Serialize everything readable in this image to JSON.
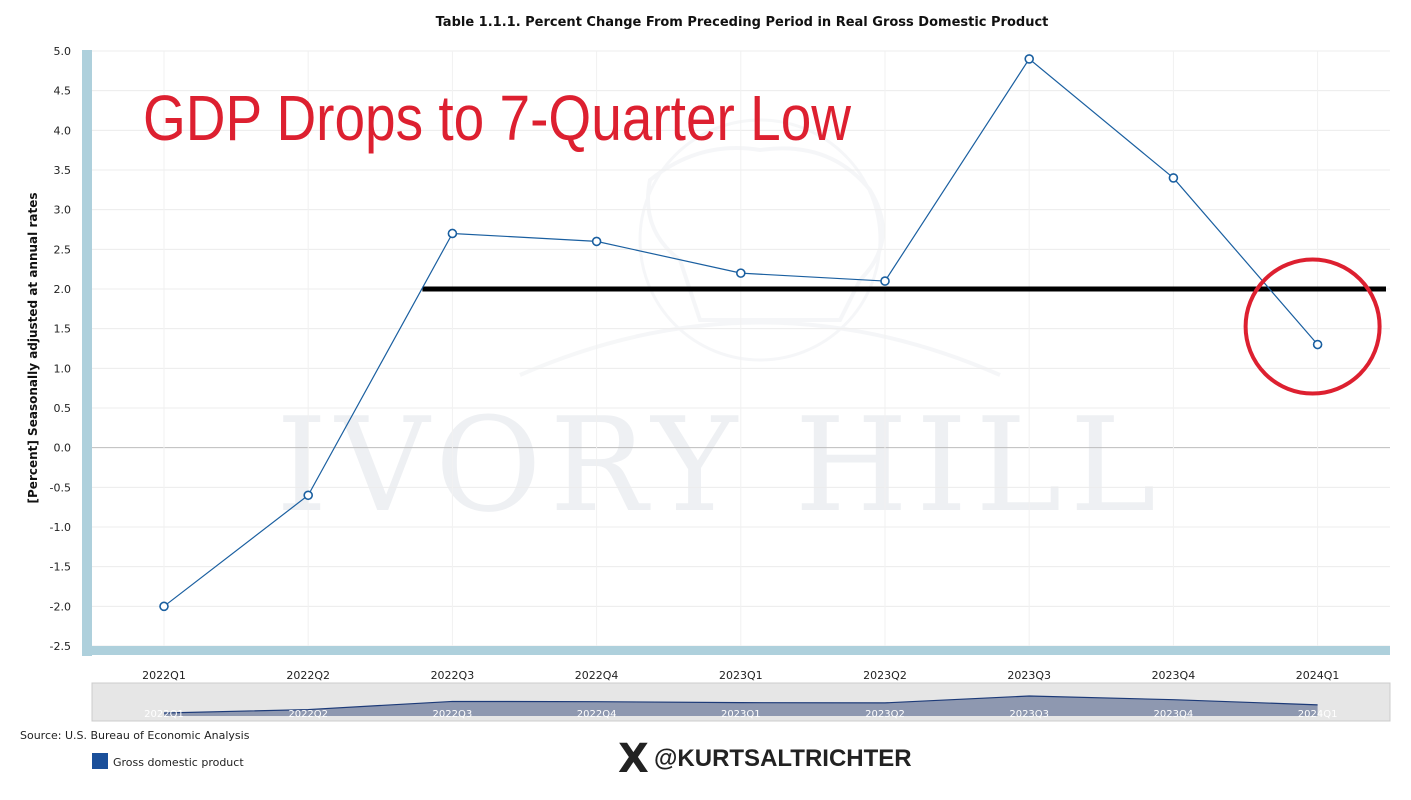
{
  "chart_data": {
    "type": "line",
    "title": "Table 1.1.1. Percent Change From Preceding Period in Real Gross Domestic Product",
    "xlabel": "",
    "ylabel": "[Percent] Seasonally adjusted at annual rates",
    "categories": [
      "2022Q1",
      "2022Q2",
      "2022Q3",
      "2022Q4",
      "2023Q1",
      "2023Q2",
      "2023Q3",
      "2023Q4",
      "2024Q1"
    ],
    "series": [
      {
        "name": "Gross domestic product",
        "values": [
          -2.0,
          -0.6,
          2.7,
          2.6,
          2.2,
          2.1,
          4.9,
          3.4,
          1.3
        ]
      }
    ],
    "ylim": [
      -2.5,
      5.0
    ],
    "yticks": [
      "5.0",
      "4.5",
      "4.0",
      "3.5",
      "3.0",
      "2.5",
      "2.0",
      "1.5",
      "1.0",
      "0.5",
      "0.0",
      "-0.5",
      "-1.0",
      "-1.5",
      "-2.0",
      "-2.5"
    ],
    "reference_line": {
      "value": 2.0,
      "from_category": "2022Q3",
      "color": "#000000"
    },
    "highlight": {
      "category": "2024Q1",
      "color": "#dd2030"
    },
    "grid": true,
    "legend_position": "bottom-left",
    "colors": {
      "series": "#1a5fa0",
      "marker_fill": "#ffffff",
      "frame": "#aed0dc",
      "navigator_fill": "#8e98b0"
    }
  },
  "annotation": {
    "headline": "GDP Drops to 7-Quarter Low",
    "watermark": "IVORY HILL"
  },
  "footer": {
    "source": "Source: U.S. Bureau of Economic Analysis",
    "handle": "@KURTSALTRICHTER",
    "logo_icon": "x-logo-icon"
  }
}
